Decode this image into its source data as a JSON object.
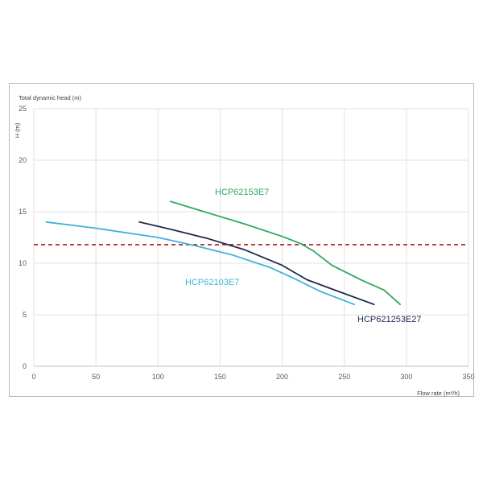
{
  "chart_data": {
    "type": "line",
    "title": "",
    "ytitle": "Total dynamic head (m)",
    "ylabel": "H (m)",
    "xlabel": "Flow rate (m³/h)",
    "xlim": [
      0,
      350
    ],
    "ylim": [
      0,
      25
    ],
    "xticks": [
      0,
      50,
      100,
      150,
      200,
      250,
      300,
      350
    ],
    "yticks": [
      0,
      5,
      10,
      15,
      20,
      25
    ],
    "grid": true,
    "legend": "none",
    "series": [
      {
        "name": "HCP62103E7",
        "color": "#3fb3d9",
        "x": [
          10,
          50,
          100,
          130,
          160,
          190,
          210,
          230,
          258
        ],
        "y": [
          14.0,
          13.4,
          12.5,
          11.7,
          10.8,
          9.6,
          8.5,
          7.3,
          6.0
        ]
      },
      {
        "name": "HCP621253E27",
        "color": "#1f2a4f",
        "x": [
          85,
          110,
          140,
          170,
          200,
          220,
          240,
          274
        ],
        "y": [
          14.0,
          13.3,
          12.4,
          11.3,
          9.8,
          8.4,
          7.5,
          6.0
        ]
      },
      {
        "name": "HCP62153E7",
        "color": "#2ea860",
        "x": [
          110,
          140,
          170,
          200,
          215,
          225,
          240,
          265,
          282,
          295
        ],
        "y": [
          16.0,
          14.9,
          13.8,
          12.6,
          11.9,
          11.2,
          9.8,
          8.3,
          7.4,
          6.0
        ]
      }
    ],
    "reference_line": {
      "y": 11.8,
      "color": "#b01818",
      "style": "dashed"
    }
  }
}
